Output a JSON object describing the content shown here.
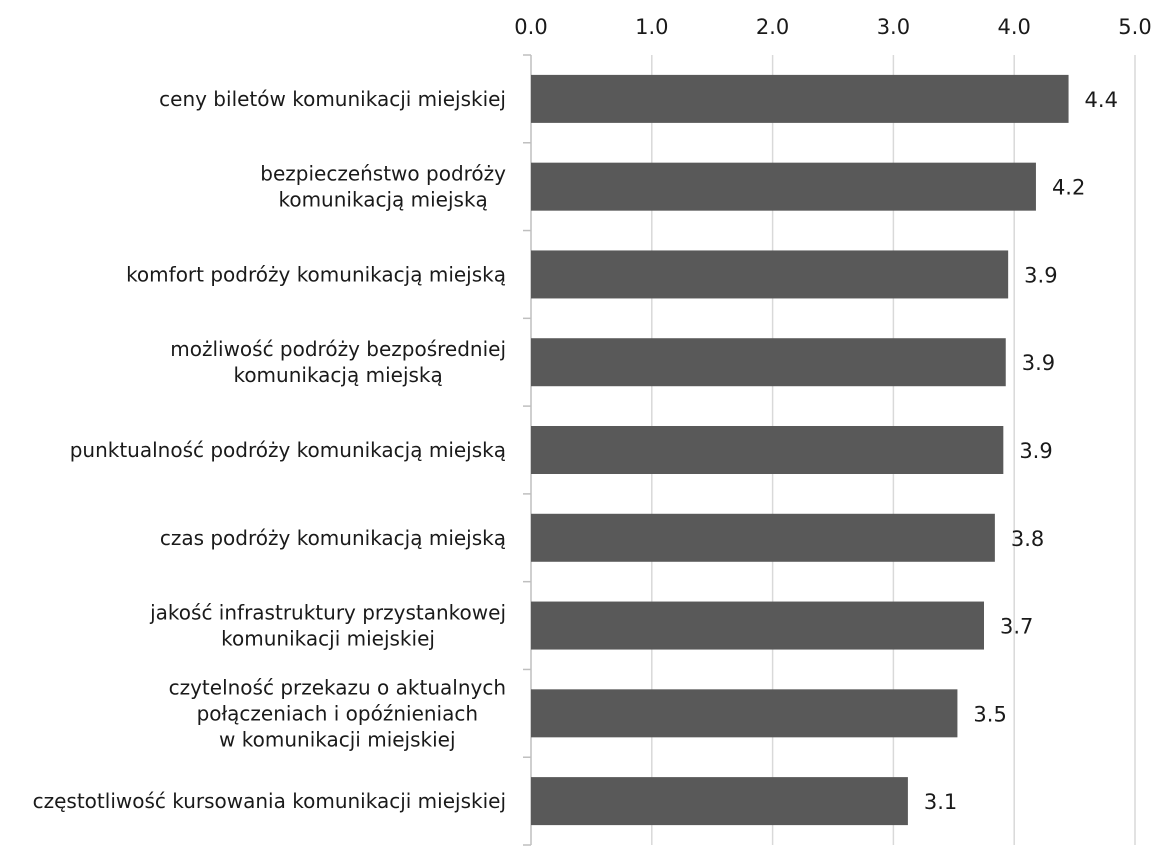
{
  "chart_data": {
    "type": "bar",
    "orientation": "horizontal",
    "title": "",
    "xlabel": "",
    "ylabel": "",
    "xlim": [
      0,
      5
    ],
    "tick_values": [
      0,
      1,
      2,
      3,
      4,
      5
    ],
    "tick_labels": [
      "0.0",
      "1.0",
      "2.0",
      "3.0",
      "4.0",
      "5.0"
    ],
    "axis_position": "top",
    "grid": true,
    "legend": "none",
    "categories": [
      [
        "ceny biletów komunikacji miejskiej"
      ],
      [
        "bezpieczeństwo podróży",
        "komunikacją miejską"
      ],
      [
        "komfort podróży komunikacją miejską"
      ],
      [
        "możliwość podróży bezpośredniej",
        "komunikacją miejską"
      ],
      [
        "punktualność podróży komunikacją miejską"
      ],
      [
        "czas podróży komunikacją miejską"
      ],
      [
        "jakość infrastruktury przystankowej",
        "komunikacji miejskiej"
      ],
      [
        "czytelność przekazu o aktualnych",
        "połączeniach i opóźnieniach",
        "w komunikacji miejskiej"
      ],
      [
        "częstotliwość kursowania komunikacji miejskiej"
      ]
    ],
    "values": [
      4.45,
      4.18,
      3.95,
      3.93,
      3.91,
      3.84,
      3.75,
      3.53,
      3.12
    ],
    "value_labels": [
      "4.4",
      "4.2",
      "3.9",
      "3.9",
      "3.9",
      "3.8",
      "3.7",
      "3.5",
      "3.1"
    ],
    "colors": {
      "bar": "#595959",
      "grid": "#d9d9d9",
      "axis": "#bfbfbf",
      "text": "#1a1a1a"
    }
  }
}
